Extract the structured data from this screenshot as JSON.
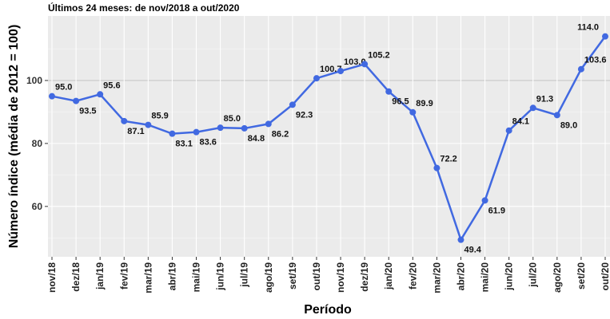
{
  "chart_data": {
    "type": "line",
    "title": "Últimos 24 meses: de nov/2018 a out/2020",
    "x_label": "Período",
    "y_label": "Número índice (média de 2012 = 100)",
    "categories": [
      "nov/18",
      "dez/18",
      "jan/19",
      "fev/19",
      "mar/19",
      "abr/19",
      "mai/19",
      "jun/19",
      "jul/19",
      "ago/19",
      "set/19",
      "out/19",
      "nov/19",
      "dez/19",
      "jan/20",
      "fev/20",
      "mar/20",
      "abr/20",
      "mai/20",
      "jun/20",
      "jul/20",
      "ago/20",
      "set/20",
      "out/20"
    ],
    "series": [
      {
        "name": "Número índice",
        "color": "#4169e1",
        "values": [
          95.0,
          93.5,
          95.6,
          87.1,
          85.9,
          83.1,
          83.6,
          85.0,
          84.8,
          86.2,
          92.3,
          100.7,
          103.0,
          105.2,
          96.5,
          89.9,
          72.2,
          49.4,
          61.9,
          84.1,
          91.3,
          89.0,
          103.6,
          114.0
        ],
        "value_labels": [
          "95.0",
          "93.5",
          "95.6",
          "87.1",
          "85.9",
          "83.1",
          "83.6",
          "85.0",
          "84.8",
          "86.2",
          "92.3",
          "100.7",
          "103.0",
          "105.2",
          "96.5",
          "89.9",
          "72.2",
          "49.4",
          "61.9",
          "84.1",
          "91.3",
          "89.0",
          "103.6",
          "114.0"
        ]
      }
    ],
    "ylim": [
      44,
      120.5
    ],
    "yticks": [
      60,
      80,
      100
    ],
    "y_minor_ticks": [
      50,
      70,
      90,
      110
    ],
    "grid": true
  }
}
